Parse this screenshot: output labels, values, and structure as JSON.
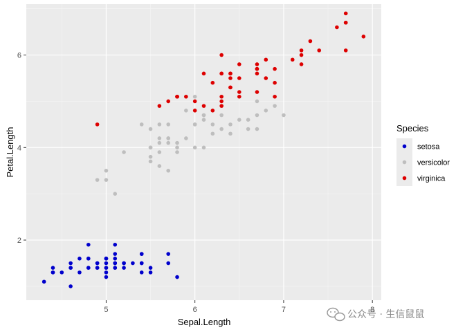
{
  "chart_data": {
    "type": "scatter",
    "xlabel": "Sepal.Length",
    "ylabel": "Petal.Length",
    "xlim": [
      4.1,
      8.1
    ],
    "ylim": [
      0.7,
      7.1
    ],
    "x_ticks": [
      5,
      6,
      7,
      8
    ],
    "y_ticks": [
      2,
      4,
      6
    ],
    "grid": true,
    "legend": {
      "title": "Species",
      "position": "right"
    },
    "series": [
      {
        "name": "setosa",
        "color": "#0000cc",
        "points": [
          [
            5.1,
            1.4
          ],
          [
            4.9,
            1.4
          ],
          [
            4.7,
            1.3
          ],
          [
            4.6,
            1.5
          ],
          [
            5.0,
            1.4
          ],
          [
            5.4,
            1.7
          ],
          [
            4.6,
            1.4
          ],
          [
            5.0,
            1.5
          ],
          [
            4.4,
            1.4
          ],
          [
            4.9,
            1.5
          ],
          [
            5.4,
            1.5
          ],
          [
            4.8,
            1.6
          ],
          [
            4.8,
            1.4
          ],
          [
            4.3,
            1.1
          ],
          [
            5.8,
            1.2
          ],
          [
            5.7,
            1.5
          ],
          [
            5.4,
            1.3
          ],
          [
            5.1,
            1.4
          ],
          [
            5.7,
            1.7
          ],
          [
            5.1,
            1.5
          ],
          [
            5.4,
            1.7
          ],
          [
            5.1,
            1.5
          ],
          [
            4.6,
            1.0
          ],
          [
            5.1,
            1.7
          ],
          [
            4.8,
            1.9
          ],
          [
            5.0,
            1.6
          ],
          [
            5.0,
            1.6
          ],
          [
            5.2,
            1.5
          ],
          [
            5.2,
            1.4
          ],
          [
            4.7,
            1.6
          ],
          [
            4.8,
            1.6
          ],
          [
            5.4,
            1.5
          ],
          [
            5.2,
            1.5
          ],
          [
            5.5,
            1.4
          ],
          [
            4.9,
            1.5
          ],
          [
            5.0,
            1.2
          ],
          [
            5.5,
            1.3
          ],
          [
            4.9,
            1.4
          ],
          [
            4.4,
            1.3
          ],
          [
            5.1,
            1.5
          ],
          [
            5.0,
            1.3
          ],
          [
            4.5,
            1.3
          ],
          [
            4.4,
            1.3
          ],
          [
            5.0,
            1.6
          ],
          [
            5.1,
            1.9
          ],
          [
            4.8,
            1.4
          ],
          [
            5.1,
            1.6
          ],
          [
            4.6,
            1.4
          ],
          [
            5.3,
            1.5
          ],
          [
            5.0,
            1.4
          ]
        ]
      },
      {
        "name": "versicolor",
        "color": "#bebebe",
        "points": [
          [
            7.0,
            4.7
          ],
          [
            6.4,
            4.5
          ],
          [
            6.9,
            4.9
          ],
          [
            5.5,
            4.0
          ],
          [
            6.5,
            4.6
          ],
          [
            5.7,
            4.5
          ],
          [
            6.3,
            4.7
          ],
          [
            4.9,
            3.3
          ],
          [
            6.6,
            4.6
          ],
          [
            5.2,
            3.9
          ],
          [
            5.0,
            3.5
          ],
          [
            5.9,
            4.2
          ],
          [
            6.0,
            4.0
          ],
          [
            6.1,
            4.7
          ],
          [
            5.6,
            3.6
          ],
          [
            6.7,
            4.4
          ],
          [
            5.6,
            4.5
          ],
          [
            5.8,
            4.1
          ],
          [
            6.2,
            4.5
          ],
          [
            5.6,
            3.9
          ],
          [
            5.9,
            4.8
          ],
          [
            6.1,
            4.0
          ],
          [
            6.3,
            4.9
          ],
          [
            6.1,
            4.7
          ],
          [
            6.4,
            4.3
          ],
          [
            6.6,
            4.4
          ],
          [
            6.8,
            4.8
          ],
          [
            6.7,
            5.0
          ],
          [
            6.0,
            4.5
          ],
          [
            5.7,
            3.5
          ],
          [
            5.5,
            3.8
          ],
          [
            5.5,
            3.7
          ],
          [
            5.8,
            3.9
          ],
          [
            6.0,
            5.1
          ],
          [
            5.4,
            4.5
          ],
          [
            6.0,
            4.5
          ],
          [
            6.7,
            4.7
          ],
          [
            6.3,
            4.4
          ],
          [
            5.6,
            4.1
          ],
          [
            5.5,
            4.0
          ],
          [
            5.5,
            4.4
          ],
          [
            6.1,
            4.6
          ],
          [
            5.8,
            4.0
          ],
          [
            5.0,
            3.3
          ],
          [
            5.6,
            4.2
          ],
          [
            5.7,
            4.2
          ],
          [
            5.7,
            4.2
          ],
          [
            6.2,
            4.3
          ],
          [
            5.1,
            3.0
          ],
          [
            5.7,
            4.1
          ]
        ]
      },
      {
        "name": "virginica",
        "color": "#dd0000",
        "points": [
          [
            6.3,
            6.0
          ],
          [
            5.8,
            5.1
          ],
          [
            7.1,
            5.9
          ],
          [
            6.3,
            5.6
          ],
          [
            6.5,
            5.8
          ],
          [
            7.6,
            6.6
          ],
          [
            4.9,
            4.5
          ],
          [
            7.3,
            6.3
          ],
          [
            6.7,
            5.8
          ],
          [
            7.2,
            6.1
          ],
          [
            6.5,
            5.1
          ],
          [
            6.4,
            5.3
          ],
          [
            6.8,
            5.5
          ],
          [
            5.7,
            5.0
          ],
          [
            5.8,
            5.1
          ],
          [
            6.4,
            5.3
          ],
          [
            6.5,
            5.5
          ],
          [
            7.7,
            6.7
          ],
          [
            7.7,
            6.9
          ],
          [
            6.0,
            5.0
          ],
          [
            6.9,
            5.7
          ],
          [
            5.6,
            4.9
          ],
          [
            7.7,
            6.7
          ],
          [
            6.3,
            4.9
          ],
          [
            6.7,
            5.7
          ],
          [
            7.2,
            6.0
          ],
          [
            6.2,
            4.8
          ],
          [
            6.1,
            4.9
          ],
          [
            6.4,
            5.6
          ],
          [
            7.2,
            5.8
          ],
          [
            7.4,
            6.1
          ],
          [
            7.9,
            6.4
          ],
          [
            6.4,
            5.6
          ],
          [
            6.3,
            5.1
          ],
          [
            6.1,
            5.6
          ],
          [
            7.7,
            6.1
          ],
          [
            6.3,
            5.6
          ],
          [
            6.4,
            5.5
          ],
          [
            6.0,
            4.8
          ],
          [
            6.9,
            5.4
          ],
          [
            6.7,
            5.6
          ],
          [
            6.9,
            5.1
          ],
          [
            5.8,
            5.1
          ],
          [
            6.8,
            5.9
          ],
          [
            6.7,
            5.7
          ],
          [
            6.7,
            5.2
          ],
          [
            6.3,
            5.0
          ],
          [
            6.5,
            5.2
          ],
          [
            6.2,
            5.4
          ],
          [
            5.9,
            5.1
          ]
        ]
      }
    ]
  },
  "watermark": {
    "text": "公众号 · 生信鼠鼠",
    "icon": "wechat-icon"
  }
}
